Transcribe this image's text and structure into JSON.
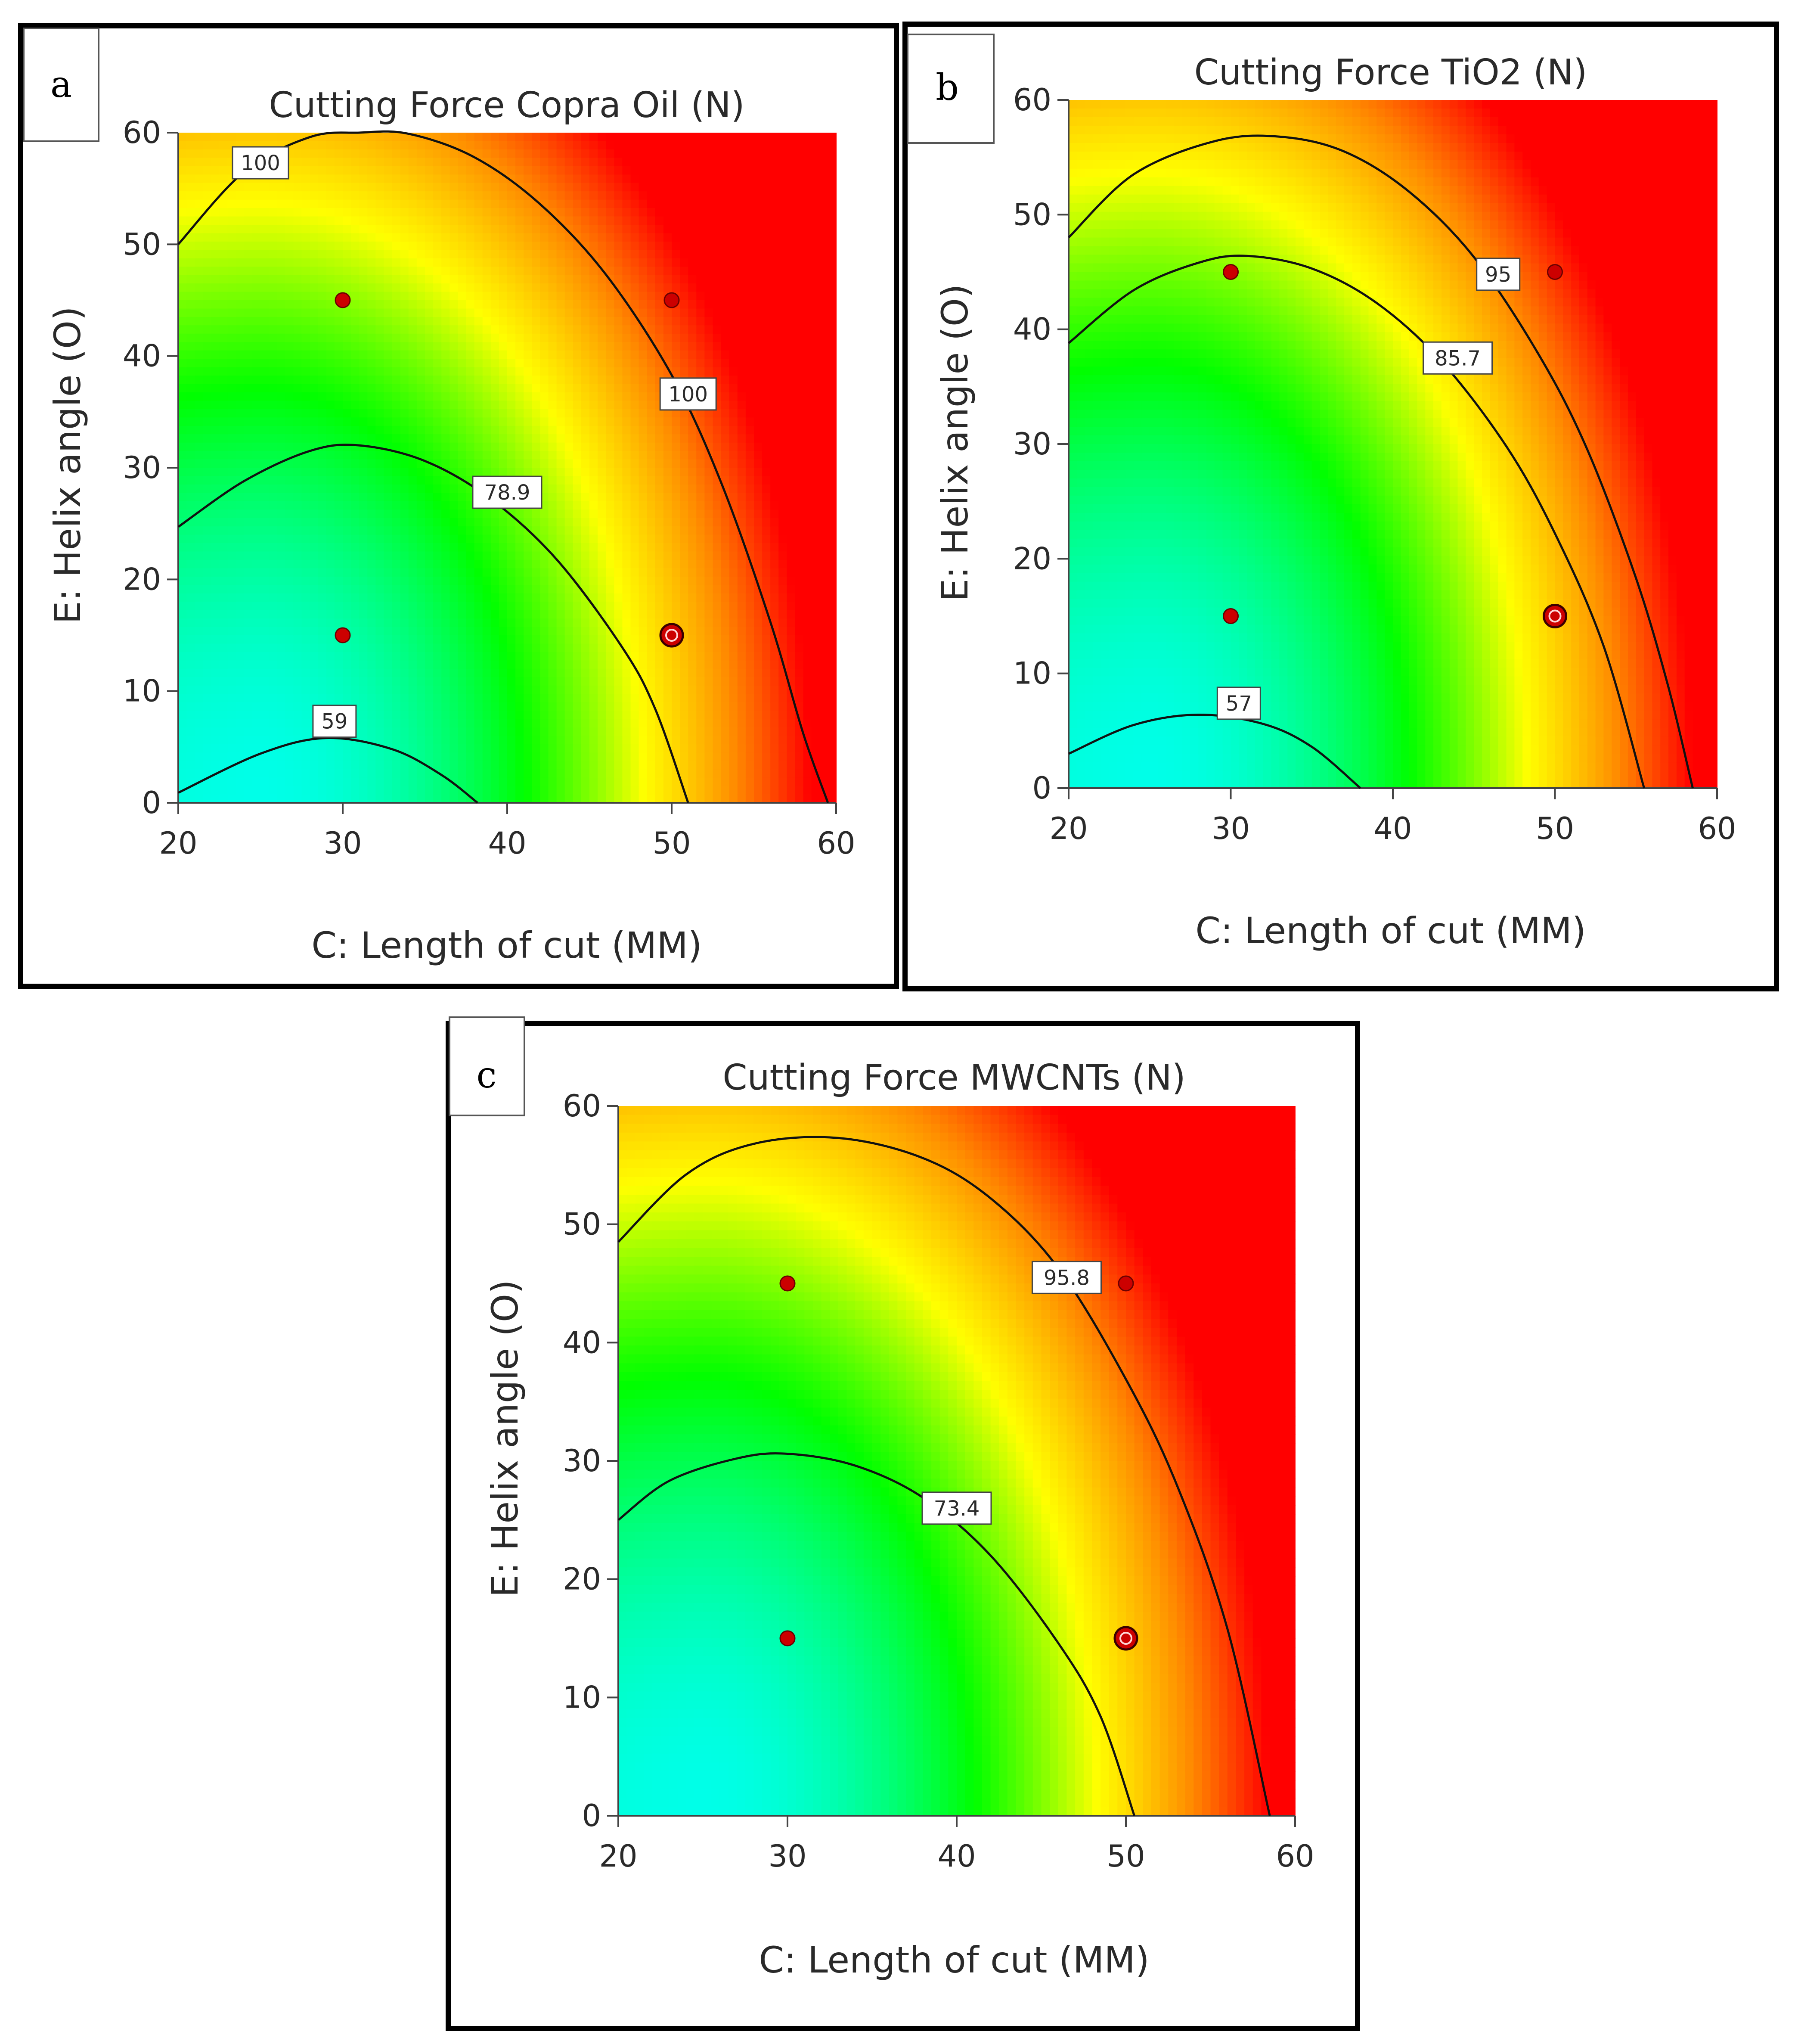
{
  "chart_data": [
    {
      "type": "heatmap",
      "panel": "a",
      "title": "Cutting Force Copra Oil  (N)",
      "xlabel": "C: Length of cut (MM)",
      "ylabel": "E: Helix angle (O)",
      "xlim": [
        20,
        60
      ],
      "ylim": [
        0,
        60
      ],
      "xticks": [
        "20",
        "30",
        "40",
        "50",
        "60"
      ],
      "yticks": [
        "0",
        "10",
        "20",
        "30",
        "40",
        "50",
        "60"
      ],
      "colormap": [
        "#00ffff",
        "#00ff00",
        "#ffff00",
        "#ff8c00",
        "#ff0000"
      ],
      "contours": [
        {
          "label": "59",
          "points": [
            [
              20,
              0.9
            ],
            [
              25,
              4.4
            ],
            [
              29,
              5.8
            ],
            [
              33,
              4.8
            ],
            [
              36,
              2.5
            ],
            [
              38.2,
              0
            ]
          ],
          "label_at": [
            29.5,
            7.3
          ]
        },
        {
          "label": "78.9",
          "points": [
            [
              20,
              24.7
            ],
            [
              24,
              28.8
            ],
            [
              28,
              31.5
            ],
            [
              31,
              32.0
            ],
            [
              35,
              30.6
            ],
            [
              39,
              27.2
            ],
            [
              43,
              21.8
            ],
            [
              47,
              13.9
            ],
            [
              49,
              8.4
            ],
            [
              51,
              0
            ]
          ],
          "label_at": [
            40,
            27.8
          ]
        },
        {
          "label": "100",
          "points": [
            [
              20,
              50
            ],
            [
              24,
              56.5
            ],
            [
              28,
              59.6
            ],
            [
              31,
              60
            ],
            [
              34,
              59.9
            ],
            [
              38,
              57.8
            ],
            [
              42,
              53.6
            ],
            [
              46,
              47.3
            ],
            [
              50,
              38.3
            ],
            [
              53,
              28.7
            ],
            [
              56,
              16.2
            ],
            [
              58,
              6.2
            ],
            [
              59.5,
              0
            ]
          ],
          "label_at": [
            51,
            36.6
          ]
        }
      ],
      "extra_labels": [
        {
          "label": "100",
          "at": [
            25,
            57.3
          ]
        }
      ],
      "design_points": [
        {
          "x": 30,
          "y": 45,
          "ring": false
        },
        {
          "x": 50,
          "y": 45,
          "ring": false
        },
        {
          "x": 30,
          "y": 15,
          "ring": false
        },
        {
          "x": 50,
          "y": 15,
          "ring": true
        }
      ]
    },
    {
      "type": "heatmap",
      "panel": "b",
      "title": "Cutting Force TiO2  (N)",
      "xlabel": "C: Length of cut (MM)",
      "ylabel": "E: Helix angle (O)",
      "xlim": [
        20,
        60
      ],
      "ylim": [
        0,
        60
      ],
      "xticks": [
        "20",
        "30",
        "40",
        "50",
        "60"
      ],
      "yticks": [
        "0",
        "10",
        "20",
        "30",
        "40",
        "50",
        "60"
      ],
      "colormap": [
        "#00ffff",
        "#00ff00",
        "#ffff00",
        "#ff8c00",
        "#ff0000"
      ],
      "contours": [
        {
          "label": "57",
          "points": [
            [
              20,
              3.0
            ],
            [
              24,
              5.5
            ],
            [
              28,
              6.4
            ],
            [
              32,
              5.6
            ],
            [
              35,
              3.6
            ],
            [
              38,
              0
            ]
          ],
          "label_at": [
            30.5,
            7.4
          ]
        },
        {
          "label": "85.7",
          "points": [
            [
              20,
              38.8
            ],
            [
              24,
              43.4
            ],
            [
              28,
              45.8
            ],
            [
              31,
              46.4
            ],
            [
              35,
              45.3
            ],
            [
              39,
              42.3
            ],
            [
              43,
              37.2
            ],
            [
              47,
              29.8
            ],
            [
              50,
              22.2
            ],
            [
              53,
              12.4
            ],
            [
              55.5,
              0
            ]
          ],
          "label_at": [
            44,
            37.5
          ]
        },
        {
          "label": "95",
          "points": [
            [
              20,
              48
            ],
            [
              24,
              53.5
            ],
            [
              29,
              56.4
            ],
            [
              33,
              56.8
            ],
            [
              37,
              55.5
            ],
            [
              41,
              52
            ],
            [
              45,
              46.3
            ],
            [
              49,
              37.8
            ],
            [
              52,
              29.5
            ],
            [
              55,
              18.3
            ],
            [
              57,
              8.8
            ],
            [
              58.5,
              0
            ]
          ],
          "label_at": [
            46.5,
            44.8
          ]
        }
      ],
      "extra_labels": [],
      "design_points": [
        {
          "x": 30,
          "y": 45,
          "ring": false
        },
        {
          "x": 50,
          "y": 45,
          "ring": false
        },
        {
          "x": 30,
          "y": 15,
          "ring": false
        },
        {
          "x": 50,
          "y": 15,
          "ring": true
        }
      ]
    },
    {
      "type": "heatmap",
      "panel": "c",
      "title": "Cutting Force MWCNTs  (N)",
      "xlabel": "C: Length of cut (MM)",
      "ylabel": "E: Helix angle (O)",
      "xlim": [
        20,
        60
      ],
      "ylim": [
        0,
        60
      ],
      "xticks": [
        "20",
        "30",
        "40",
        "50",
        "60"
      ],
      "yticks": [
        "0",
        "10",
        "20",
        "30",
        "40",
        "50",
        "60"
      ],
      "colormap": [
        "#00ffff",
        "#00ff00",
        "#ffff00",
        "#ff8c00",
        "#ff0000"
      ],
      "contours": [
        {
          "label": "73.4",
          "points": [
            [
              20,
              25
            ],
            [
              23,
              28.3
            ],
            [
              27,
              30.2
            ],
            [
              30,
              30.6
            ],
            [
              34,
              29.6
            ],
            [
              38,
              26.9
            ],
            [
              42,
              22
            ],
            [
              46,
              14.6
            ],
            [
              48.5,
              8.4
            ],
            [
              50.5,
              0
            ]
          ],
          "label_at": [
            40,
            26
          ]
        },
        {
          "label": "95.8",
          "points": [
            [
              20,
              48.5
            ],
            [
              24,
              54.2
            ],
            [
              28,
              56.8
            ],
            [
              33,
              57.3
            ],
            [
              38,
              55.6
            ],
            [
              42,
              52.2
            ],
            [
              46,
              46.3
            ],
            [
              50,
              36.9
            ],
            [
              53,
              28
            ],
            [
              56,
              15.8
            ],
            [
              58.5,
              0
            ]
          ],
          "label_at": [
            46.5,
            45.5
          ]
        }
      ],
      "extra_labels": [],
      "design_points": [
        {
          "x": 30,
          "y": 45,
          "ring": false
        },
        {
          "x": 50,
          "y": 45,
          "ring": false
        },
        {
          "x": 30,
          "y": 15,
          "ring": false
        },
        {
          "x": 50,
          "y": 15,
          "ring": true
        }
      ]
    }
  ]
}
